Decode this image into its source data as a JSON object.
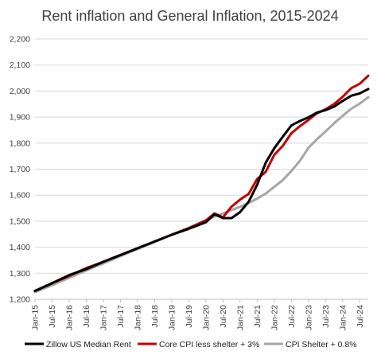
{
  "chart_data": {
    "type": "line",
    "title": "Rent inflation and General Inflation, 2015-2024",
    "xlabel": "",
    "ylabel": "",
    "ylim": [
      1200,
      2200
    ],
    "y_ticks": [
      "1,200",
      "1,300",
      "1,400",
      "1,500",
      "1,600",
      "1,700",
      "1,800",
      "1,900",
      "2,000",
      "2,100",
      "2,200"
    ],
    "x_ticks": [
      "Jan-15",
      "Jul-15",
      "Jan-16",
      "Jul-16",
      "Jan-17",
      "Jul-17",
      "Jan-18",
      "Jul-18",
      "Jan-19",
      "Jul-19",
      "Jan-20",
      "Jul-20",
      "Jan-21",
      "Jul-21",
      "Jan-22",
      "Jul-22",
      "Jan-23",
      "Jul-23",
      "Jan-24",
      "Jul-24"
    ],
    "grid": true,
    "legend_position": "bottom",
    "series": [
      {
        "name": "Zillow US Median Rent",
        "color": "#000000",
        "x": [
          "Jan-15",
          "Jul-15",
          "Jan-16",
          "Jul-16",
          "Jan-17",
          "Jul-17",
          "Jan-18",
          "Jul-18",
          "Jan-19",
          "Jul-19",
          "Jan-20",
          "Apr-20",
          "Jul-20",
          "Oct-20",
          "Jan-21",
          "Apr-21",
          "Jul-21",
          "Oct-21",
          "Jan-22",
          "Apr-22",
          "Jul-22",
          "Oct-22",
          "Jan-23",
          "Apr-23",
          "Jul-23",
          "Oct-23",
          "Jan-24",
          "Apr-24",
          "Jul-24",
          "Oct-24"
        ],
        "values": [
          1232,
          1262,
          1293,
          1316,
          1344,
          1370,
          1396,
          1422,
          1448,
          1471,
          1496,
          1527,
          1512,
          1512,
          1535,
          1575,
          1640,
          1725,
          1780,
          1825,
          1868,
          1885,
          1899,
          1917,
          1927,
          1940,
          1962,
          1982,
          1991,
          2008
        ]
      },
      {
        "name": "Core CPI less shelter + 3%",
        "color": "#c00000",
        "x": [
          "Jan-15",
          "Jul-15",
          "Jan-16",
          "Jul-16",
          "Jan-17",
          "Jul-17",
          "Jan-18",
          "Jul-18",
          "Jan-19",
          "Jul-19",
          "Jan-20",
          "Apr-20",
          "Jul-20",
          "Oct-20",
          "Jan-21",
          "Apr-21",
          "Jul-21",
          "Oct-21",
          "Jan-22",
          "Apr-22",
          "Jul-22",
          "Oct-22",
          "Jan-23",
          "Apr-23",
          "Jul-23",
          "Oct-23",
          "Jan-24",
          "Apr-24",
          "Jul-24",
          "Oct-24"
        ],
        "values": [
          1232,
          1262,
          1290,
          1320,
          1344,
          1370,
          1396,
          1422,
          1448,
          1473,
          1503,
          1530,
          1515,
          1556,
          1583,
          1605,
          1662,
          1690,
          1755,
          1790,
          1838,
          1865,
          1889,
          1915,
          1930,
          1950,
          1978,
          2011,
          2028,
          2059
        ]
      },
      {
        "name": "CPI Shelter + 0.8%",
        "color": "#a6a6a6",
        "x": [
          "Jan-15",
          "Jul-15",
          "Jan-16",
          "Jul-16",
          "Jan-17",
          "Jul-17",
          "Jan-18",
          "Jul-18",
          "Jan-19",
          "Jul-19",
          "Jan-20",
          "Apr-20",
          "Jul-20",
          "Oct-20",
          "Jan-21",
          "Apr-21",
          "Jul-21",
          "Oct-21",
          "Jan-22",
          "Apr-22",
          "Jul-22",
          "Oct-22",
          "Jan-23",
          "Apr-23",
          "Jul-23",
          "Oct-23",
          "Jan-24",
          "Apr-24",
          "Jul-24",
          "Oct-24"
        ],
        "values": [
          1228,
          1254,
          1283,
          1311,
          1338,
          1366,
          1393,
          1420,
          1448,
          1475,
          1504,
          1518,
          1530,
          1543,
          1555,
          1570,
          1587,
          1606,
          1632,
          1658,
          1693,
          1732,
          1782,
          1815,
          1845,
          1876,
          1905,
          1932,
          1952,
          1976
        ]
      }
    ]
  }
}
